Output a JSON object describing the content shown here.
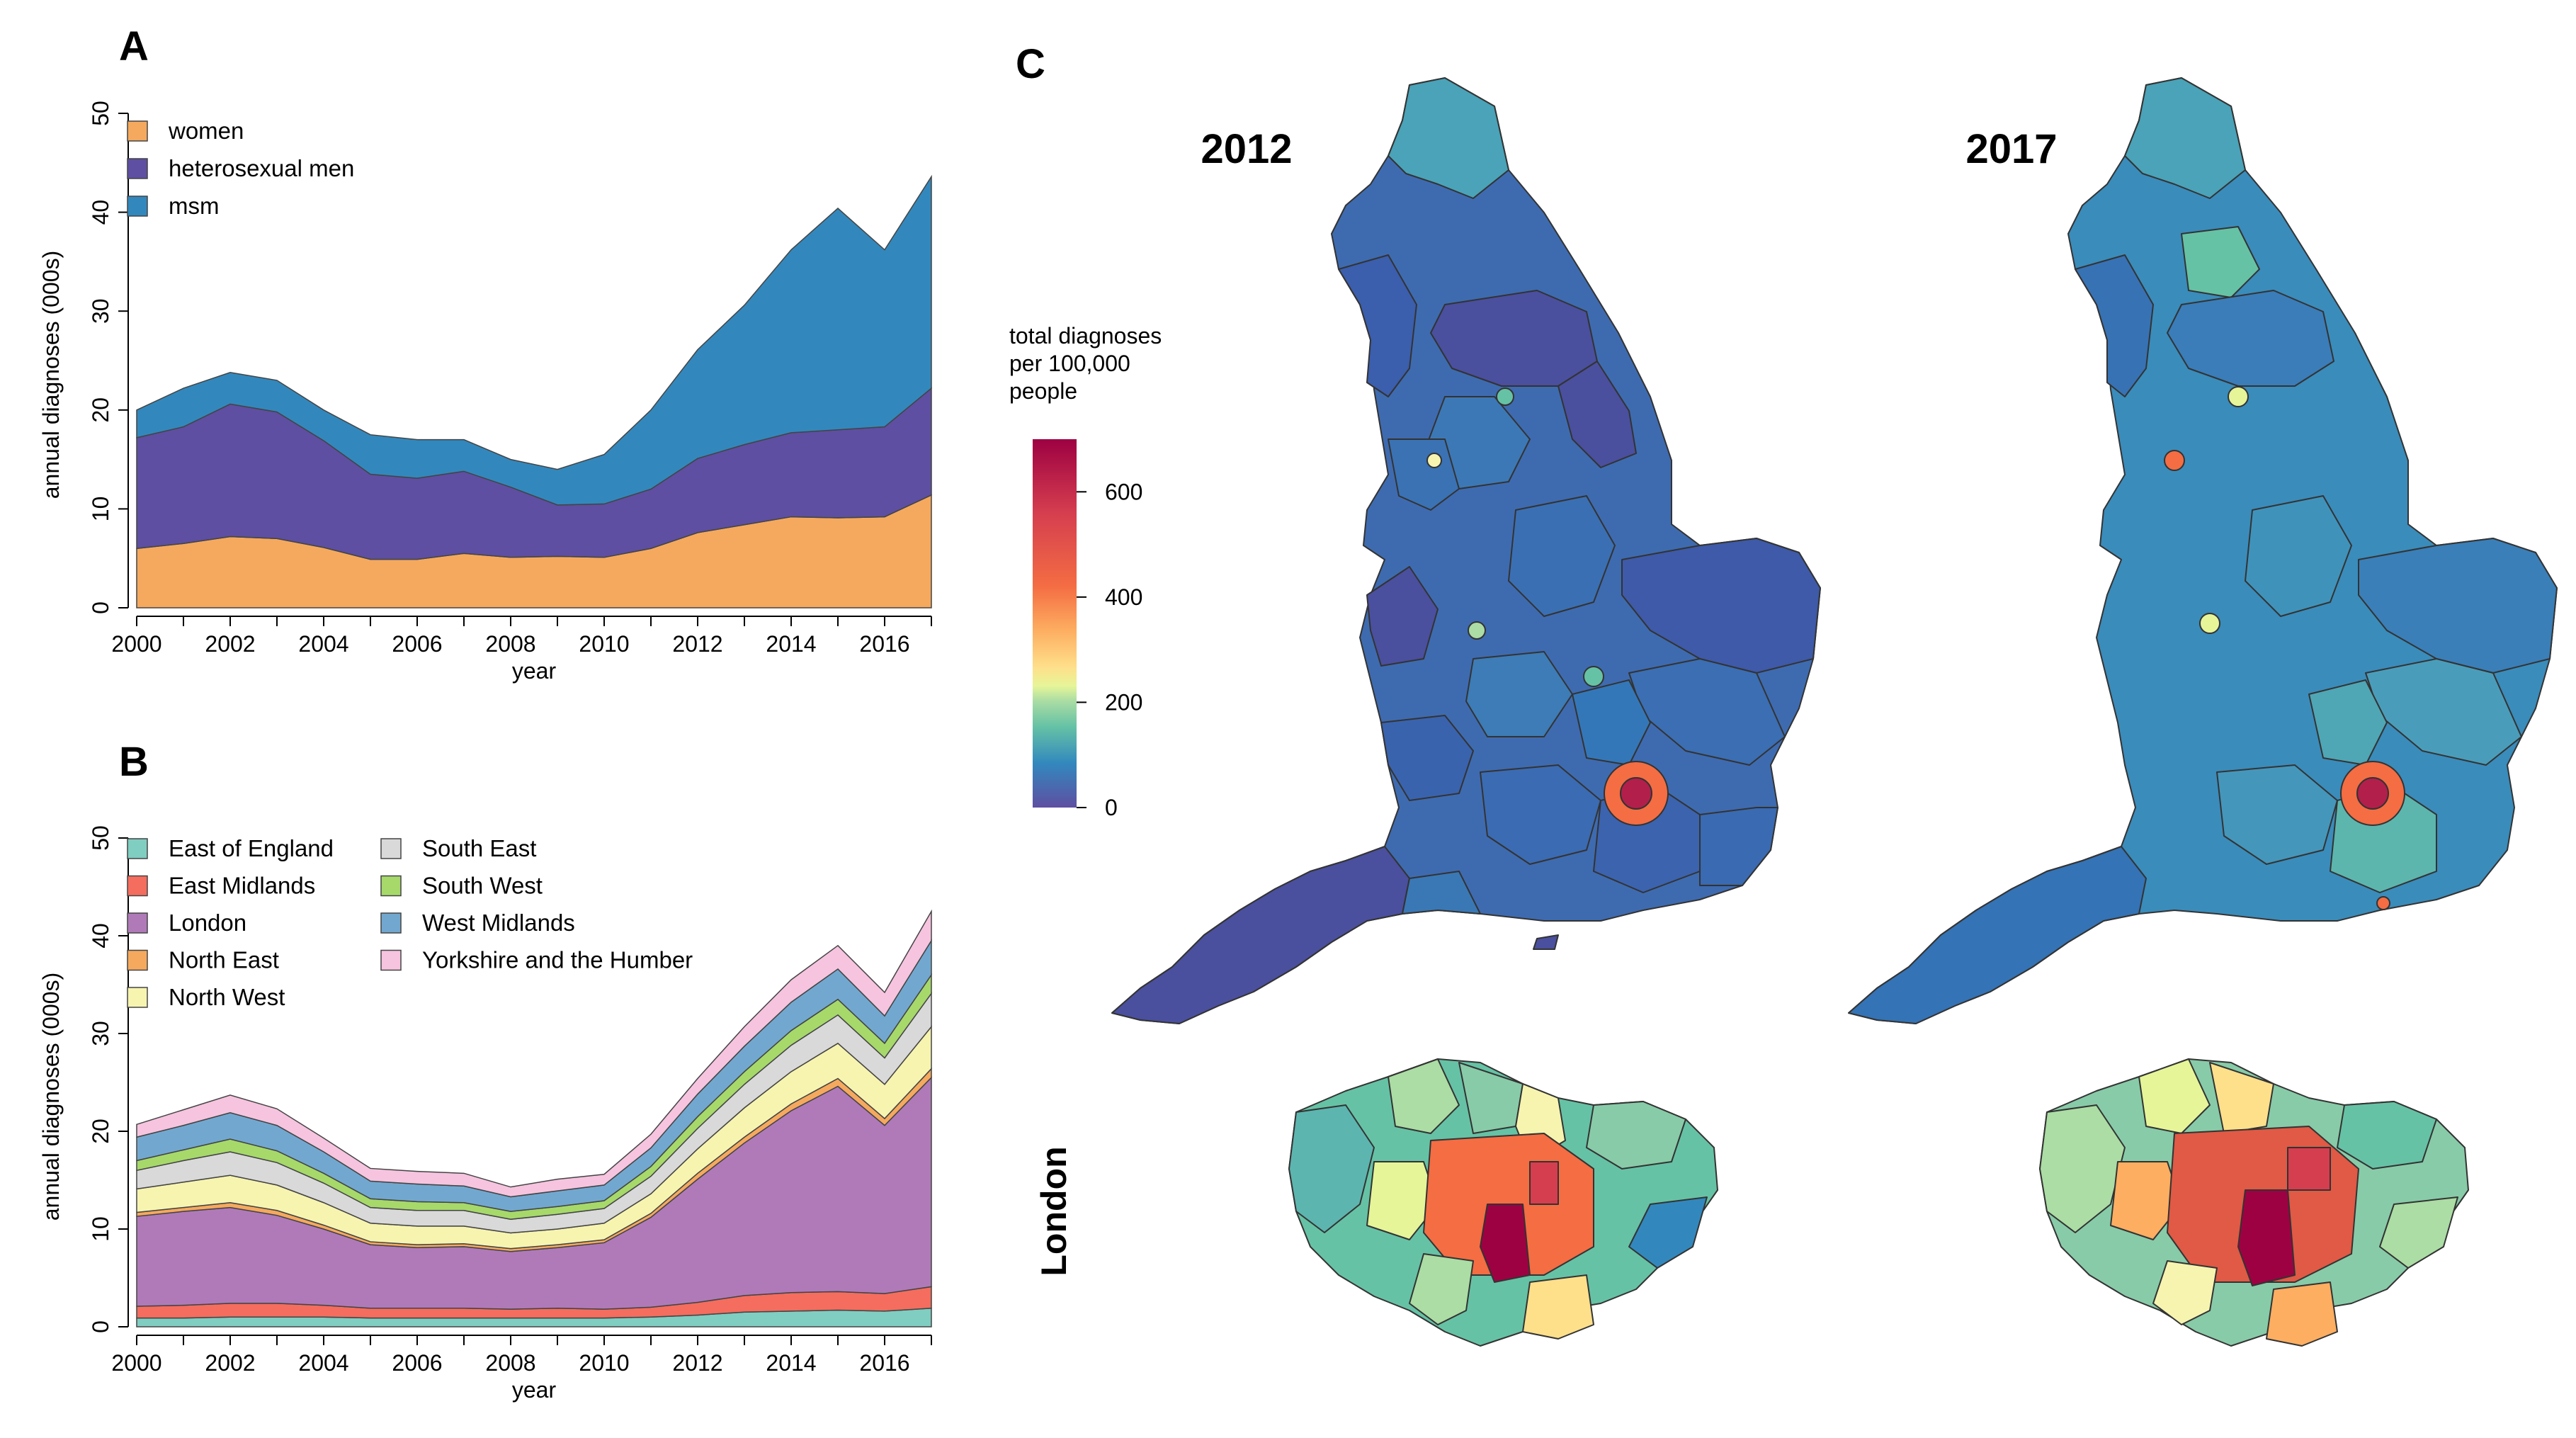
{
  "figure": {
    "panel_a": "A",
    "panel_b": "B",
    "panel_c": "C"
  },
  "chart_data": [
    {
      "id": "A",
      "type": "area",
      "stacked": true,
      "title": "",
      "xlabel": "year",
      "ylabel": "annual diagnoses (000s)",
      "xlim": [
        2000,
        2017
      ],
      "ylim": [
        0,
        50
      ],
      "xticks": [
        "2000",
        "2002",
        "2004",
        "2006",
        "2008",
        "2010",
        "2012",
        "2014",
        "2016"
      ],
      "yticks": [
        "0",
        "10",
        "20",
        "30",
        "40",
        "50"
      ],
      "legend_position": "top-left",
      "x": [
        2000,
        2001,
        2002,
        2003,
        2004,
        2005,
        2006,
        2007,
        2008,
        2009,
        2010,
        2011,
        2012,
        2013,
        2014,
        2015,
        2016,
        2017
      ],
      "series": [
        {
          "name": "women",
          "color": "#F5A95E",
          "values": [
            6.0,
            6.5,
            7.2,
            7.0,
            6.1,
            4.9,
            4.9,
            5.5,
            5.1,
            5.2,
            5.1,
            6.0,
            7.6,
            8.4,
            9.2,
            9.1,
            9.2,
            11.4
          ]
        },
        {
          "name": "heterosexual men",
          "color": "#5E4FA2",
          "values": [
            11.2,
            11.8,
            13.4,
            12.8,
            10.8,
            8.6,
            8.2,
            8.3,
            7.1,
            5.2,
            5.4,
            6.0,
            7.5,
            8.1,
            8.5,
            8.9,
            9.1,
            10.8
          ]
        },
        {
          "name": "msm",
          "color": "#3288BD",
          "values": [
            2.8,
            3.9,
            3.2,
            3.2,
            3.1,
            4.0,
            3.9,
            3.2,
            2.8,
            3.6,
            5.0,
            8.0,
            11.0,
            14.1,
            18.5,
            22.4,
            17.9,
            21.4
          ]
        }
      ]
    },
    {
      "id": "B",
      "type": "area",
      "stacked": true,
      "title": "",
      "xlabel": "year",
      "ylabel": "annual diagnoses (000s)",
      "xlim": [
        2000,
        2017
      ],
      "ylim": [
        0,
        50
      ],
      "xticks": [
        "2000",
        "2002",
        "2004",
        "2006",
        "2008",
        "2010",
        "2012",
        "2014",
        "2016"
      ],
      "yticks": [
        "0",
        "10",
        "20",
        "30",
        "40",
        "50"
      ],
      "legend_position": "top-left",
      "x": [
        2000,
        2001,
        2002,
        2003,
        2004,
        2005,
        2006,
        2007,
        2008,
        2009,
        2010,
        2011,
        2012,
        2013,
        2014,
        2015,
        2016,
        2017
      ],
      "series": [
        {
          "name": "East of England",
          "color": "#80CDC1",
          "values": [
            0.9,
            0.9,
            1.0,
            1.0,
            1.0,
            0.9,
            0.9,
            0.9,
            0.9,
            0.9,
            0.9,
            1.0,
            1.2,
            1.5,
            1.6,
            1.7,
            1.6,
            1.9
          ]
        },
        {
          "name": "East Midlands",
          "color": "#F46D5E",
          "values": [
            1.2,
            1.3,
            1.4,
            1.4,
            1.2,
            1.0,
            1.0,
            1.0,
            0.9,
            1.0,
            0.9,
            1.0,
            1.3,
            1.7,
            1.9,
            1.9,
            1.8,
            2.2
          ]
        },
        {
          "name": "London",
          "color": "#B07AB8",
          "values": [
            9.2,
            9.6,
            9.8,
            9.0,
            7.8,
            6.5,
            6.2,
            6.3,
            5.9,
            6.2,
            6.8,
            9.2,
            12.6,
            15.6,
            18.6,
            21.0,
            17.2,
            21.4
          ]
        },
        {
          "name": "North East",
          "color": "#F5A95E",
          "values": [
            0.4,
            0.4,
            0.5,
            0.5,
            0.4,
            0.3,
            0.3,
            0.3,
            0.3,
            0.3,
            0.3,
            0.4,
            0.6,
            0.6,
            0.7,
            0.8,
            0.7,
            0.9
          ]
        },
        {
          "name": "North West",
          "color": "#F7F4B0",
          "values": [
            2.4,
            2.6,
            2.8,
            2.6,
            2.3,
            1.9,
            1.9,
            1.8,
            1.6,
            1.6,
            1.7,
            2.0,
            2.5,
            3.0,
            3.3,
            3.6,
            3.5,
            4.3
          ]
        },
        {
          "name": "South East",
          "color": "#D9D9D9",
          "values": [
            1.9,
            2.2,
            2.4,
            2.3,
            2.0,
            1.6,
            1.6,
            1.6,
            1.4,
            1.5,
            1.5,
            1.8,
            2.1,
            2.4,
            2.7,
            2.9,
            2.7,
            3.4
          ]
        },
        {
          "name": "South West",
          "color": "#A6D96A",
          "values": [
            1.0,
            1.1,
            1.3,
            1.2,
            1.0,
            0.9,
            0.9,
            0.8,
            0.8,
            0.8,
            0.8,
            1.0,
            1.2,
            1.3,
            1.5,
            1.6,
            1.5,
            1.9
          ]
        },
        {
          "name": "West Midlands",
          "color": "#72A8CF",
          "values": [
            2.4,
            2.5,
            2.7,
            2.6,
            2.2,
            1.8,
            1.8,
            1.7,
            1.5,
            1.6,
            1.6,
            1.9,
            2.3,
            2.6,
            2.9,
            3.1,
            2.8,
            3.5
          ]
        },
        {
          "name": "Yorkshire and the Humber",
          "color": "#F6C4DF",
          "values": [
            1.3,
            1.6,
            1.8,
            1.7,
            1.4,
            1.3,
            1.3,
            1.3,
            1.0,
            1.2,
            1.1,
            1.4,
            1.6,
            2.0,
            2.3,
            2.4,
            2.4,
            3.0
          ]
        }
      ]
    },
    {
      "id": "C",
      "type": "choropleth",
      "maps": [
        {
          "year": "2012",
          "region": "England"
        },
        {
          "year": "2017",
          "region": "England"
        }
      ],
      "inset_label": "London",
      "colorbar": {
        "title_lines": [
          "total diagnoses",
          "per 100,000",
          "people"
        ],
        "range": [
          0,
          700
        ],
        "ticks": [
          "0",
          "200",
          "400",
          "600"
        ],
        "palette": [
          "#5E4FA2",
          "#3288BD",
          "#66C2A5",
          "#ABDDA4",
          "#E6F598",
          "#FEE08B",
          "#FDAE61",
          "#F46D43",
          "#D53E4F",
          "#9E0142"
        ]
      }
    }
  ]
}
